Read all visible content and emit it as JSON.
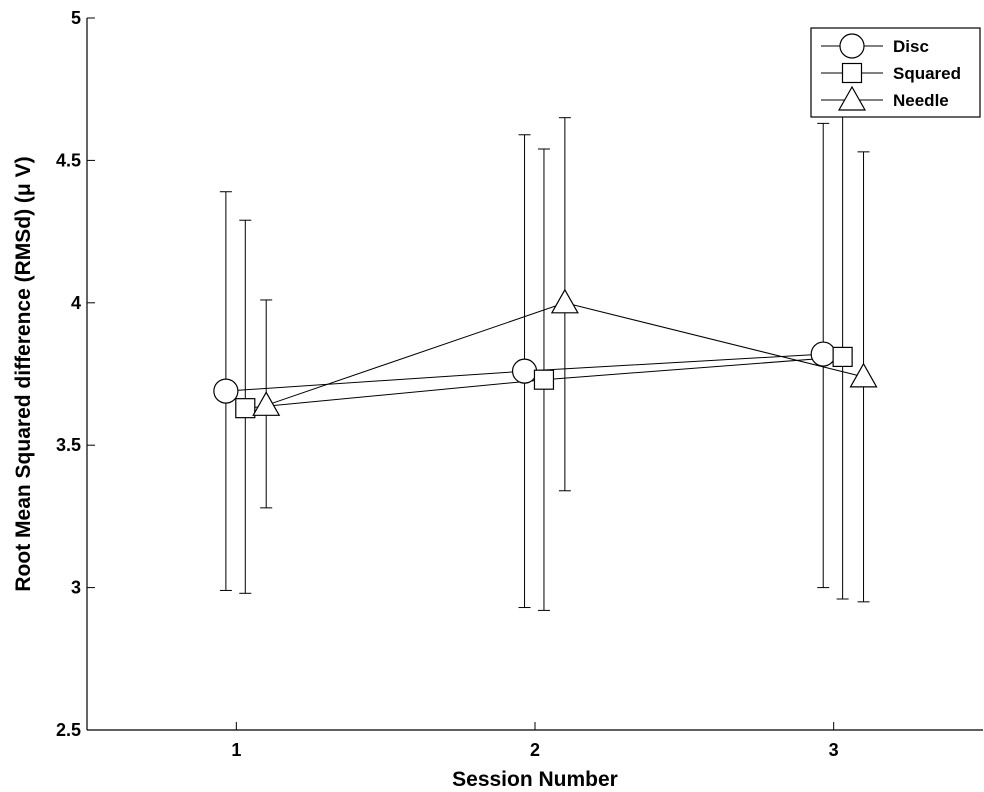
{
  "chart_data": {
    "type": "line",
    "title": "",
    "xlabel": "Session Number",
    "ylabel": "Root Mean Squared difference (RMSd) (μ V)",
    "xlim": [
      0.5,
      3.5
    ],
    "ylim": [
      2.5,
      5
    ],
    "x_ticks": [
      "1",
      "2",
      "3"
    ],
    "y_ticks": [
      "2.5",
      "3",
      "3.5",
      "4",
      "4.5",
      "5"
    ],
    "grid": false,
    "legend_position": "top-right",
    "series": [
      {
        "name": "Disc",
        "marker": "circle",
        "x": [
          1,
          2,
          3
        ],
        "y": [
          3.69,
          3.76,
          3.82
        ],
        "err_low": [
          2.99,
          2.93,
          3.0
        ],
        "err_high": [
          4.39,
          4.59,
          4.63
        ]
      },
      {
        "name": "Squared",
        "marker": "square",
        "x": [
          1,
          2,
          3
        ],
        "y": [
          3.63,
          3.73,
          3.81
        ],
        "err_low": [
          2.98,
          2.92,
          2.96
        ],
        "err_high": [
          4.29,
          4.54,
          4.68
        ]
      },
      {
        "name": "Needle",
        "marker": "triangle",
        "x": [
          1,
          2,
          3
        ],
        "y": [
          3.64,
          4.0,
          3.74
        ],
        "err_low": [
          3.28,
          3.34,
          2.95
        ],
        "err_high": [
          4.01,
          4.65,
          4.53
        ]
      }
    ]
  }
}
